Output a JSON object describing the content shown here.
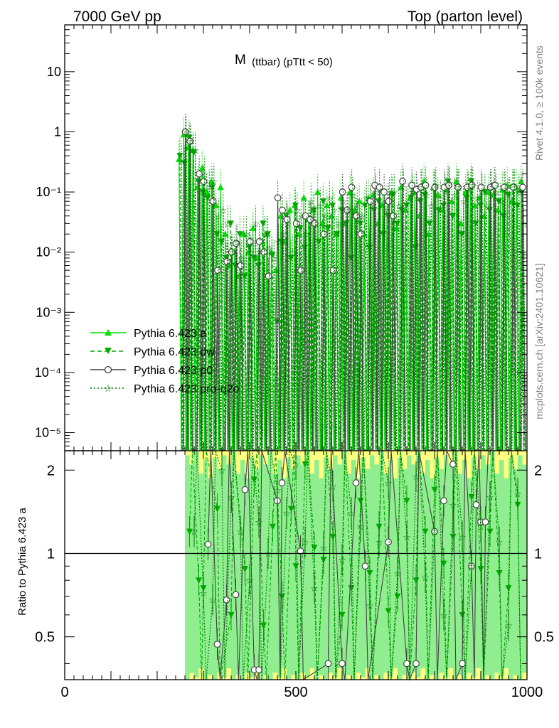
{
  "header": {
    "left": "7000 GeV pp",
    "right": "Top (parton level)"
  },
  "side_labels": {
    "rivet": "Rivet 4.1.0, ≥ 100k events",
    "mcplots": "mcplots.cern.ch [arXiv:2401.10621]"
  },
  "watermark": "MC_TTBAR_TTBAR",
  "colors": {
    "a": "#00dd00",
    "dw": "#00aa00",
    "p0": "#444444",
    "pro_q2o": "#007700",
    "band_yellow": "#ffff80",
    "band_green": "#90ee90"
  },
  "legend": [
    {
      "label": "Pythia 6.423 a",
      "marker": "triangle-up",
      "line": "solid"
    },
    {
      "label": "Pythia 6.423 dw",
      "marker": "triangle-down",
      "line": "dashed"
    },
    {
      "label": "Pythia 6.423 p0",
      "marker": "circle-open",
      "line": "solid"
    },
    {
      "label": "Pythia 6.423 pro-q2o",
      "marker": "star",
      "line": "dotted"
    }
  ],
  "chart_data": [
    {
      "type": "line",
      "title": "M (ttbar) (pTtt < 50)",
      "title_main": "M",
      "title_sub": "(ttbar) (pTtt < 50)",
      "xlim": [
        0,
        1000
      ],
      "ylim": [
        5e-06,
        60
      ],
      "yscale": "log",
      "y_ticks": [
        {
          "value": 10,
          "label": "10"
        },
        {
          "value": 1,
          "label": "1"
        },
        {
          "value": 0.1,
          "label": "10⁻¹"
        },
        {
          "value": 0.01,
          "label": "10⁻²"
        },
        {
          "value": 0.001,
          "label": "10⁻³"
        },
        {
          "value": 0.0001,
          "label": "10⁻⁴"
        },
        {
          "value": 1e-05,
          "label": "10⁻⁵"
        }
      ],
      "x": [
        250,
        260,
        270,
        280,
        290,
        300,
        310,
        320,
        330,
        340,
        350,
        360,
        370,
        380,
        390,
        400,
        410,
        420,
        430,
        440,
        450,
        460,
        470,
        480,
        490,
        500,
        510,
        520,
        530,
        540,
        550,
        560,
        570,
        580,
        590,
        600,
        610,
        620,
        630,
        640,
        650,
        660,
        670,
        680,
        690,
        700,
        710,
        720,
        730,
        740,
        750,
        760,
        770,
        780,
        790,
        800,
        810,
        820,
        830,
        840,
        850,
        860,
        870,
        880,
        890,
        900,
        910,
        920,
        930,
        940,
        950,
        960,
        970,
        980,
        990
      ],
      "series": [
        {
          "name": "Pythia 6.423 a",
          "values": [
            0.35,
            0.9,
            0.55,
            0.5,
            0.12,
            0.25,
            0.1,
            0.15,
            0.06,
            0.12,
            0.02,
            0.006,
            0.01,
            0.004,
            0.02,
            0.01,
            0.025,
            0.008,
            0.015,
            0.02,
            0.01,
            0.005,
            0.04,
            0.015,
            0.05,
            0.06,
            0.02,
            0.08,
            0.035,
            0.05,
            0.1,
            0.03,
            0.06,
            0.04,
            0.02,
            0.08,
            0.03,
            0.1,
            0.05,
            0.07,
            0.02,
            0.08,
            0.09,
            0.03,
            0.06,
            0.07,
            0.1,
            0.025,
            0.12,
            0.05,
            0.08,
            0.1,
            0.04,
            0.15,
            0.02,
            0.12,
            0.09,
            0.05,
            0.11,
            0.07,
            0.15,
            0.03,
            0.1,
            0.12,
            0.06,
            0.08,
            0.04,
            0.1,
            0.09,
            0.05,
            0.11,
            0.13,
            0.07,
            0.12,
            0.15
          ]
        },
        {
          "name": "Pythia 6.423 dw",
          "values": [
            0.4,
            0.3,
            0.8,
            0.45,
            0.15,
            0.1,
            0.08,
            0.12,
            0.02,
            0.015,
            0.008,
            0.03,
            0.006,
            0.02,
            0.004,
            0.012,
            0.008,
            0.006,
            0.03,
            0.02,
            0.009,
            0.0007,
            0.015,
            0.04,
            0.008,
            0.06,
            0.025,
            0.012,
            0.035,
            0.05,
            0.015,
            0.07,
            0.025,
            0.06,
            0.02,
            0.05,
            0.03,
            0.008,
            0.04,
            0.03,
            0.06,
            0.012,
            0.05,
            0.07,
            0.02,
            0.04,
            0.09,
            0.03,
            0.05,
            0.06,
            0.08,
            0.012,
            0.07,
            0.09,
            0.03,
            0.11,
            0.05,
            0.06,
            0.15,
            0.04,
            0.12,
            0.02,
            0.08,
            0.15,
            0.03,
            0.06,
            0.1,
            0.05,
            0.13,
            0.07,
            0.04,
            0.09,
            0.12,
            0.06,
            0.1
          ]
        },
        {
          "name": "Pythia 6.423 p0",
          "values": [
            null,
            1.0,
            0.7,
            null,
            0.2,
            0.15,
            null,
            0.07,
            0.005,
            null,
            0.007,
            0.01,
            0.014,
            0.006,
            null,
            0.015,
            null,
            0.015,
            0.01,
            0.004,
            null,
            0.08,
            0.05,
            0.035,
            null,
            0.03,
            0.005,
            0.04,
            0.035,
            0.03,
            null,
            0.02,
            null,
            0.005,
            null,
            0.1,
            0.05,
            0.12,
            0.04,
            0.02,
            null,
            0.07,
            0.13,
            0.12,
            0.1,
            0.07,
            0.04,
            null,
            0.15,
            null,
            0.13,
            0.11,
            0.12,
            0.13,
            null,
            0.12,
            null,
            0.12,
            0.13,
            null,
            0.12,
            null,
            0.12,
            0.13,
            null,
            0.12,
            null,
            0.12,
            0.13,
            null,
            0.12,
            null,
            0.12,
            null,
            0.12
          ]
        },
        {
          "name": "Pythia 6.423 pro-q2o",
          "values": [
            0.33,
            1.0,
            0.7,
            0.5,
            0.1,
            0.2,
            0.12,
            0.15,
            0.04,
            0.05,
            0.03,
            0.01,
            0.015,
            0.008,
            0.02,
            0.01,
            0.03,
            0.01,
            0.02,
            0.012,
            0.008,
            0.015,
            0.02,
            0.03,
            0.01,
            0.05,
            0.04,
            0.02,
            0.07,
            0.03,
            0.06,
            0.04,
            0.08,
            0.05,
            0.03,
            0.07,
            0.05,
            0.09,
            0.06,
            0.04,
            0.08,
            0.06,
            0.1,
            0.07,
            0.05,
            0.09,
            0.1,
            0.06,
            0.12,
            0.07,
            0.1,
            0.08,
            0.12,
            0.09,
            0.06,
            0.13,
            0.08,
            0.1,
            0.14,
            0.09,
            0.12,
            0.07,
            0.11,
            0.13,
            0.08,
            0.1,
            0.06,
            0.12,
            0.1,
            0.07,
            0.11,
            0.09,
            0.12,
            0.1,
            0.03
          ]
        }
      ]
    },
    {
      "type": "line",
      "ylabel": "Ratio to Pythia 6.423 a",
      "xlim": [
        0,
        1000
      ],
      "ylim": [
        0.35,
        2.35
      ],
      "yscale": "log",
      "x_ticks": [
        {
          "value": 0,
          "label": "0"
        },
        {
          "value": 500,
          "label": "500"
        },
        {
          "value": 1000,
          "label": "1000"
        }
      ],
      "y_ticks": [
        {
          "value": 2,
          "label": "2"
        },
        {
          "value": 1,
          "label": "1"
        },
        {
          "value": 0.5,
          "label": "0.5"
        }
      ],
      "reference_line": 1,
      "band_start": 260,
      "series": [
        {
          "name": "Pythia 6.423 dw",
          "points": [
            [
              270,
              1.2
            ],
            [
              290,
              0.8
            ],
            [
              300,
              0.75
            ],
            [
              330,
              1.45
            ],
            [
              360,
              0.6
            ],
            [
              390,
              0.88
            ],
            [
              410,
              1.85
            ],
            [
              430,
              0.55
            ],
            [
              450,
              1.25
            ],
            [
              470,
              0.7
            ],
            [
              490,
              1.45
            ],
            [
              500,
              0.9
            ],
            [
              520,
              2.1
            ],
            [
              540,
              1.05
            ],
            [
              560,
              0.95
            ],
            [
              580,
              1.15
            ],
            [
              600,
              0.6
            ],
            [
              620,
              0.75
            ],
            [
              640,
              1.55
            ],
            [
              660,
              0.85
            ],
            [
              680,
              1.25
            ],
            [
              700,
              0.62
            ],
            [
              720,
              0.7
            ],
            [
              740,
              1.55
            ],
            [
              760,
              0.8
            ],
            [
              780,
              1.2
            ],
            [
              800,
              1.7
            ],
            [
              820,
              0.92
            ],
            [
              840,
              1.15
            ],
            [
              860,
              0.6
            ],
            [
              880,
              1.6
            ],
            [
              900,
              0.88
            ],
            [
              920,
              1.2
            ],
            [
              940,
              0.85
            ],
            [
              960,
              0.75
            ],
            [
              980,
              1.5
            ]
          ]
        },
        {
          "name": "Pythia 6.423 p0",
          "points": [
            [
              310,
              1.08
            ],
            [
              330,
              0.47
            ],
            [
              350,
              0.68
            ],
            [
              370,
              0.71
            ],
            [
              390,
              1.7
            ],
            [
              410,
              0.38
            ],
            [
              420,
              0.38
            ],
            [
              460,
              1.55
            ],
            [
              470,
              1.8
            ],
            [
              510,
              1.02
            ],
            [
              570,
              0.4
            ],
            [
              600,
              0.4
            ],
            [
              630,
              1.8
            ],
            [
              650,
              0.9
            ],
            [
              700,
              1.1
            ],
            [
              740,
              0.4
            ],
            [
              760,
              0.4
            ],
            [
              800,
              1.2
            ],
            [
              820,
              1.55
            ],
            [
              840,
              2.1
            ],
            [
              860,
              0.4
            ],
            [
              880,
              0.9
            ],
            [
              890,
              1.5
            ],
            [
              900,
              1.3
            ],
            [
              910,
              1.3
            ]
          ]
        },
        {
          "name": "Pythia 6.423 pro-q2o",
          "points": [
            [
              280,
              1.2
            ],
            [
              300,
              0.72
            ],
            [
              320,
              0.68
            ],
            [
              340,
              2.0
            ],
            [
              360,
              1.6
            ],
            [
              380,
              1.2
            ],
            [
              400,
              0.8
            ],
            [
              420,
              1.3
            ],
            [
              440,
              1.0
            ],
            [
              460,
              1.7
            ],
            [
              480,
              1.4
            ],
            [
              500,
              2.1
            ],
            [
              520,
              1.1
            ],
            [
              540,
              0.75
            ],
            [
              560,
              1.05
            ],
            [
              580,
              1.75
            ],
            [
              600,
              0.95
            ],
            [
              620,
              1.4
            ],
            [
              640,
              1.25
            ],
            [
              660,
              0.65
            ],
            [
              680,
              1.1
            ],
            [
              700,
              1.8
            ],
            [
              720,
              0.85
            ],
            [
              740,
              1.15
            ],
            [
              760,
              1.9
            ],
            [
              780,
              0.82
            ],
            [
              800,
              1.2
            ],
            [
              820,
              0.6
            ],
            [
              840,
              1.5
            ],
            [
              860,
              1.15
            ],
            [
              880,
              0.9
            ],
            [
              900,
              1.25
            ],
            [
              920,
              1.6
            ],
            [
              940,
              1.1
            ],
            [
              960,
              0.55
            ],
            [
              980,
              1.65
            ]
          ]
        }
      ]
    }
  ]
}
